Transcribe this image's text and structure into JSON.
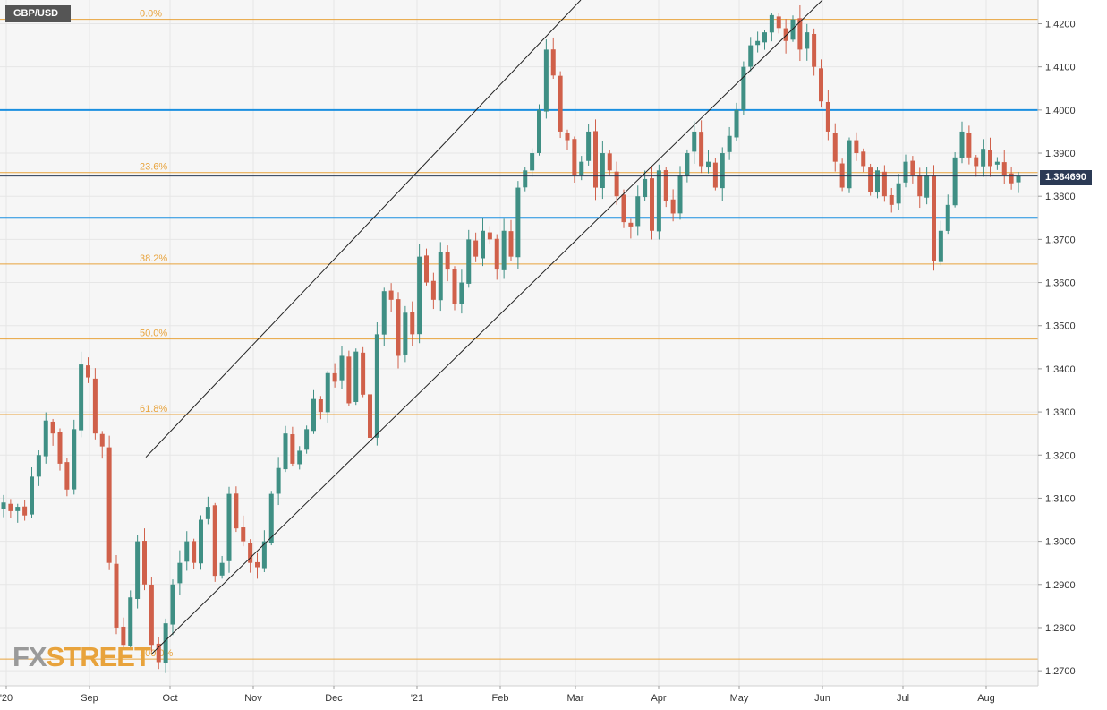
{
  "symbol": "GBP/USD",
  "current_price_label": "1.384690",
  "logo": {
    "part1": "FX",
    "part2": "STREET"
  },
  "colors": {
    "bull": "#3f8f84",
    "bear": "#d0604a",
    "fib": "#e8a33c",
    "levels": "#1a8fe0",
    "channel": "#222222",
    "price_line": "#2b3a55"
  },
  "chart_data": {
    "type": "candlestick",
    "symbol": "GBP/USD",
    "ylim": [
      1.2665,
      1.4255
    ],
    "y_ticks": [
      "1.2700",
      "1.2800",
      "1.2900",
      "1.3000",
      "1.3100",
      "1.3200",
      "1.3300",
      "1.3400",
      "1.3500",
      "1.3600",
      "1.3700",
      "1.3800",
      "1.3900",
      "1.4000",
      "1.4100",
      "1.4200"
    ],
    "x_ticks": [
      "'20",
      "Sep",
      "Oct",
      "Nov",
      "Dec",
      "'21",
      "Feb",
      "Mar",
      "Apr",
      "May",
      "Jun",
      "Jul",
      "Aug"
    ],
    "current_price": 1.38469,
    "fibonacci": {
      "levels": [
        {
          "label": "0.0%",
          "price": 1.421
        },
        {
          "label": "23.6%",
          "price": 1.3855
        },
        {
          "label": "38.2%",
          "price": 1.3643
        },
        {
          "label": "50.0%",
          "price": 1.3469
        },
        {
          "label": "61.8%",
          "price": 1.3294
        },
        {
          "label": "100.0%",
          "price": 1.2727
        }
      ]
    },
    "horizontal_levels": [
      1.4,
      1.375
    ],
    "channel_lines": [
      {
        "from": {
          "date": "2020-09-22",
          "price": 1.3195
        },
        "to": {
          "date": "2021-03-03",
          "price": 1.4255
        }
      },
      {
        "from": {
          "date": "2020-09-24",
          "price": 1.2738
        },
        "to": {
          "date": "2021-06-01",
          "price": 1.4255
        }
      }
    ],
    "candle_points": {
      "start_date": "2020-07-31",
      "end_date": "2021-08-13",
      "close_path": [
        1.309,
        1.307,
        1.308,
        1.306,
        1.315,
        1.32,
        1.328,
        1.325,
        1.318,
        1.312,
        1.326,
        1.341,
        1.338,
        1.325,
        1.322,
        1.295,
        1.28,
        1.276,
        1.287,
        1.3,
        1.29,
        1.276,
        1.272,
        1.281,
        1.29,
        1.295,
        1.3,
        1.295,
        1.305,
        1.308,
        1.292,
        1.295,
        1.311,
        1.303,
        1.3,
        1.295,
        1.294,
        1.3,
        1.311,
        1.317,
        1.325,
        1.318,
        1.321,
        1.326,
        1.333,
        1.33,
        1.339,
        1.337,
        1.343,
        1.332,
        1.344,
        1.334,
        1.324,
        1.348,
        1.358,
        1.356,
        1.343,
        1.353,
        1.348,
        1.366,
        1.36,
        1.356,
        1.367,
        1.363,
        1.355,
        1.36,
        1.37,
        1.366,
        1.372,
        1.37,
        1.363,
        1.372,
        1.366,
        1.382,
        1.386,
        1.39,
        1.4,
        1.414,
        1.408,
        1.395,
        1.393,
        1.385,
        1.388,
        1.395,
        1.382,
        1.39,
        1.386,
        1.38,
        1.374,
        1.373,
        1.38,
        1.384,
        1.372,
        1.386,
        1.379,
        1.376,
        1.385,
        1.39,
        1.395,
        1.387,
        1.388,
        1.382,
        1.39,
        1.394,
        1.4,
        1.41,
        1.415,
        1.416,
        1.418,
        1.422,
        1.419,
        1.416,
        1.421,
        1.414,
        1.418,
        1.41,
        1.402,
        1.395,
        1.388,
        1.382,
        1.393,
        1.39,
        1.387,
        1.381,
        1.386,
        1.38,
        1.378,
        1.383,
        1.388,
        1.385,
        1.38,
        1.385,
        1.365,
        1.372,
        1.378,
        1.389,
        1.395,
        1.389,
        1.387,
        1.391,
        1.387,
        1.388,
        1.385,
        1.383,
        1.3847
      ]
    }
  }
}
